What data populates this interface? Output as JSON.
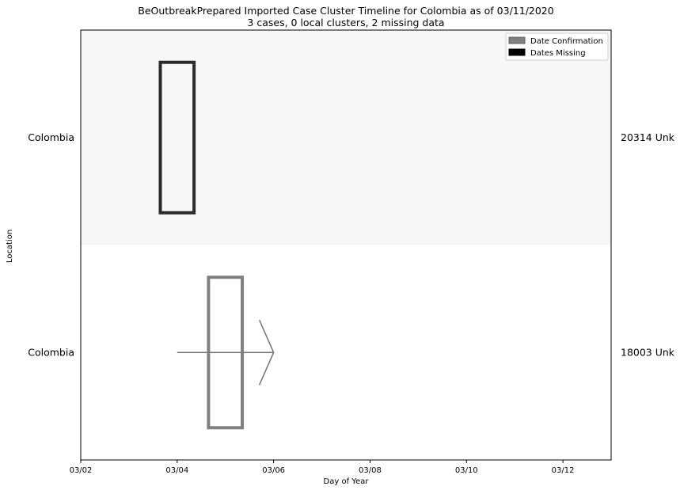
{
  "chart_data": {
    "type": "timeline",
    "title": "BeOutbreakPrepared Imported Case Cluster Timeline for Colombia as of 03/11/2020",
    "subtitle": "3 cases, 0 local clusters, 2 missing data",
    "xlabel": "Day of Year",
    "ylabel": "Location",
    "x_ticks": [
      "03/02",
      "03/04",
      "03/06",
      "03/08",
      "03/10",
      "03/12"
    ],
    "xlim": [
      "03/02",
      "03/13"
    ],
    "rows": [
      {
        "location": "Colombia",
        "right_label": "20314 Unk",
        "shaded": true,
        "box": {
          "start": "03/03.65",
          "end": "03/04.35",
          "color": "#2b2b2b"
        },
        "arrow": null
      },
      {
        "location": "Colombia",
        "right_label": "18003 Unk",
        "shaded": false,
        "box": {
          "start": "03/04.65",
          "end": "03/05.35",
          "color": "#808080"
        },
        "arrow": {
          "start": "03/04",
          "end": "03/06",
          "color": "#707070"
        }
      }
    ],
    "legend": {
      "placement": "top-right",
      "entries": [
        {
          "label": "Date Confirmation",
          "color": "#808080"
        },
        {
          "label": "Dates Missing",
          "color": "#000000"
        }
      ]
    },
    "colors": {
      "shade": "#f7f7f7"
    }
  }
}
